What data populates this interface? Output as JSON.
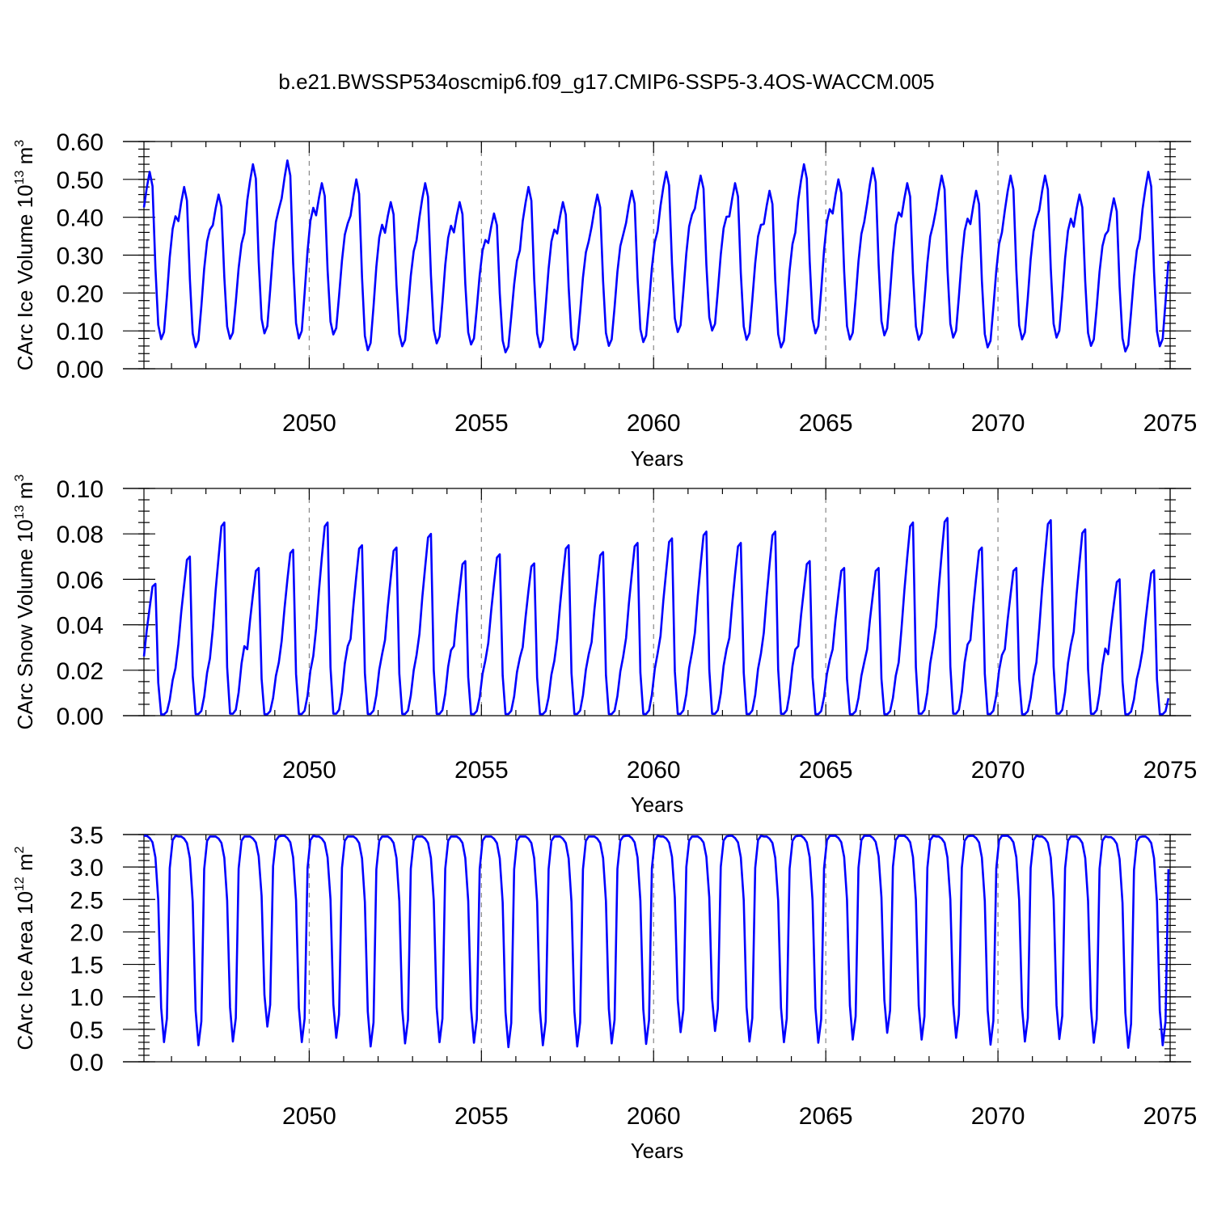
{
  "chart_data": {
    "title": "b.e21.BWSSP534oscmip6.f09_g17.CMIP6-SSP5-3.4OS-WACCM.005",
    "type": "line",
    "series_color": "#0000ff",
    "x_start": 2045.2,
    "months_per_year": 12,
    "x_range": [
      2045.2,
      2075.0
    ],
    "x_ticks": [
      2050,
      2055,
      2060,
      2065,
      2070,
      2075
    ],
    "xlabel": "Years",
    "panels": [
      {
        "name": "ice-volume",
        "ylabel": "CArc Ice Volume 10",
        "ylabel_exp": "13",
        "ylabel_unit": " m",
        "ylabel_unit_exp": "3",
        "ylim": [
          0.0,
          0.6
        ],
        "y_ticks": [
          "0.00",
          "0.10",
          "0.20",
          "0.30",
          "0.40",
          "0.50",
          "0.60"
        ],
        "y_tick_values": [
          0.0,
          0.1,
          0.2,
          0.3,
          0.4,
          0.5,
          0.6
        ],
        "minor_step": 0.02,
        "seasonal_shape": [
          0.8,
          0.91,
          1.0,
          0.92,
          0.46,
          0.14,
          0.06,
          0.1,
          0.3,
          0.52,
          0.68,
          0.75
        ],
        "annual_min": [
          0.05,
          0.03,
          0.055,
          0.065,
          0.05,
          0.065,
          0.02,
          0.035,
          0.04,
          0.04,
          0.02,
          0.03,
          0.025,
          0.035,
          0.045,
          0.07,
          0.075,
          0.05,
          0.03,
          0.065,
          0.05,
          0.06,
          0.05,
          0.055,
          0.03,
          0.05,
          0.055,
          0.035,
          0.02,
          0.03
        ],
        "annual_max": [
          0.52,
          0.48,
          0.46,
          0.54,
          0.55,
          0.49,
          0.5,
          0.44,
          0.49,
          0.44,
          0.41,
          0.48,
          0.44,
          0.46,
          0.47,
          0.52,
          0.51,
          0.49,
          0.47,
          0.54,
          0.5,
          0.53,
          0.49,
          0.51,
          0.47,
          0.51,
          0.51,
          0.46,
          0.45,
          0.52
        ]
      },
      {
        "name": "snow-volume",
        "ylabel": "CArc Snow Volume 10",
        "ylabel_exp": "13",
        "ylabel_unit": " m",
        "ylabel_unit_exp": "3",
        "ylim": [
          0.0,
          0.1
        ],
        "y_ticks": [
          "0.00",
          "0.02",
          "0.04",
          "0.06",
          "0.08",
          "0.10"
        ],
        "y_tick_values": [
          0.0,
          0.02,
          0.04,
          0.06,
          0.08,
          0.1
        ],
        "minor_step": 0.005,
        "seasonal_shape": [
          0.45,
          0.65,
          0.82,
          0.98,
          1.0,
          0.25,
          0.01,
          0.01,
          0.03,
          0.12,
          0.27,
          0.36
        ],
        "annual_min": [
          0,
          0,
          0,
          0,
          0,
          0,
          0,
          0,
          0,
          0,
          0,
          0,
          0,
          0,
          0,
          0,
          0,
          0,
          0,
          0,
          0,
          0,
          0,
          0,
          0,
          0,
          0,
          0,
          0,
          0
        ],
        "annual_max": [
          0.058,
          0.07,
          0.085,
          0.065,
          0.073,
          0.085,
          0.075,
          0.074,
          0.08,
          0.068,
          0.071,
          0.067,
          0.075,
          0.072,
          0.076,
          0.078,
          0.081,
          0.076,
          0.081,
          0.068,
          0.065,
          0.065,
          0.085,
          0.087,
          0.074,
          0.065,
          0.086,
          0.082,
          0.06,
          0.064
        ]
      },
      {
        "name": "ice-area",
        "ylabel": "CArc Ice Area 10",
        "ylabel_exp": "12",
        "ylabel_unit": " m",
        "ylabel_unit_exp": "2",
        "ylim": [
          0.0,
          3.5
        ],
        "y_ticks": [
          "0.0",
          "0.5",
          "1.0",
          "1.5",
          "2.0",
          "2.5",
          "3.0",
          "3.5"
        ],
        "y_tick_values": [
          0.0,
          0.5,
          1.0,
          1.5,
          2.0,
          2.5,
          3.0,
          3.5
        ],
        "minor_step": 0.1,
        "seasonal_shape": [
          1.0,
          1.0,
          0.99,
          0.97,
          0.9,
          0.7,
          0.2,
          0.04,
          0.15,
          0.85,
          0.98,
          1.0
        ],
        "annual_min": [
          0.17,
          0.12,
          0.18,
          0.42,
          0.17,
          0.24,
          0.1,
          0.15,
          0.17,
          0.16,
          0.09,
          0.12,
          0.1,
          0.15,
          0.14,
          0.33,
          0.35,
          0.18,
          0.17,
          0.16,
          0.21,
          0.32,
          0.21,
          0.24,
          0.13,
          0.18,
          0.22,
          0.16,
          0.08,
          0.12
        ],
        "annual_max": [
          3.48,
          3.47,
          3.47,
          3.47,
          3.48,
          3.47,
          3.47,
          3.47,
          3.47,
          3.47,
          3.47,
          3.47,
          3.47,
          3.47,
          3.48,
          3.47,
          3.47,
          3.48,
          3.47,
          3.48,
          3.48,
          3.48,
          3.48,
          3.47,
          3.48,
          3.48,
          3.47,
          3.47,
          3.46,
          3.47
        ]
      }
    ]
  }
}
